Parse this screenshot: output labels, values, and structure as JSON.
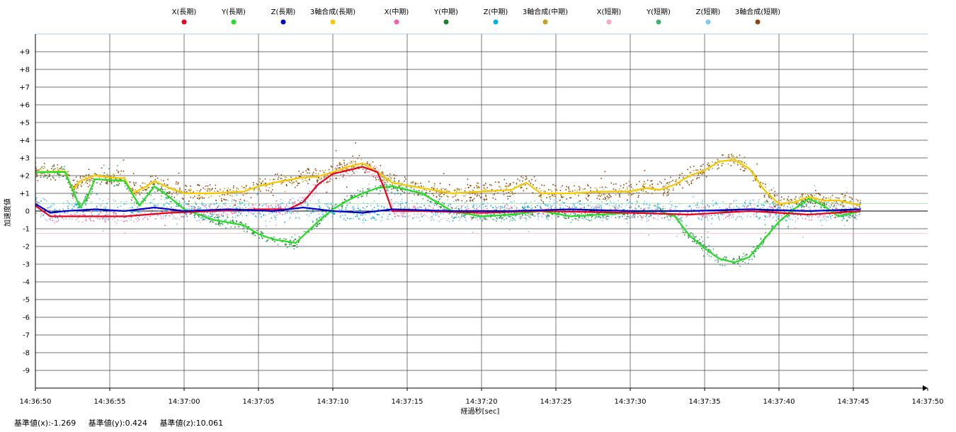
{
  "chart_data": {
    "type": "scatter",
    "xlabel": "経過秒[sec]",
    "ylabel": "加速度値",
    "ylim": [
      -10,
      10
    ],
    "y_ticks": [
      "+9",
      "+8",
      "+7",
      "+6",
      "+5",
      "+4",
      "+3",
      "+2",
      "+1",
      "0",
      "-1",
      "-2",
      "-3",
      "-4",
      "-5",
      "-6",
      "-7",
      "-8",
      "-9"
    ],
    "x_ticks": [
      "14:36:50",
      "14:36:55",
      "14:37:00",
      "14:37:05",
      "14:37:10",
      "14:37:15",
      "14:37:20",
      "14:37:25",
      "14:37:30",
      "14:37:35",
      "14:37:40",
      "14:37:45",
      "14:37:50"
    ],
    "x_range_sec": [
      0,
      60
    ],
    "grid": true,
    "legend_position": "top",
    "legend": [
      {
        "name": "X(長期)",
        "color": "#e8001c"
      },
      {
        "name": "Y(長期)",
        "color": "#22dd22"
      },
      {
        "name": "Z(長期)",
        "color": "#0000cc"
      },
      {
        "name": "3軸合成(長期)",
        "color": "#f5c800"
      },
      {
        "name": "X(中期)",
        "color": "#f060a8"
      },
      {
        "name": "Y(中期)",
        "color": "#1f7f2f"
      },
      {
        "name": "Z(中期)",
        "color": "#00aeef"
      },
      {
        "name": "3軸合成(中期)",
        "color": "#c8a020"
      },
      {
        "name": "X(短期)",
        "color": "#f8a8c0"
      },
      {
        "name": "Y(短期)",
        "color": "#3cb371"
      },
      {
        "name": "Z(短期)",
        "color": "#7ec8e8"
      },
      {
        "name": "3軸合成(短期)",
        "color": "#8b4513"
      }
    ],
    "series_points": {
      "comp_long": [
        [
          0,
          2.2
        ],
        [
          2,
          2.25
        ],
        [
          2.5,
          1.2
        ],
        [
          3,
          1.7
        ],
        [
          4,
          2.0
        ],
        [
          5,
          1.9
        ],
        [
          6,
          1.85
        ],
        [
          6.5,
          1.0
        ],
        [
          7.5,
          1.4
        ],
        [
          8,
          1.7
        ],
        [
          9,
          1.3
        ],
        [
          10,
          1.0
        ],
        [
          12,
          1.0
        ],
        [
          14,
          1.1
        ],
        [
          15,
          1.4
        ],
        [
          16,
          1.6
        ],
        [
          18,
          1.9
        ],
        [
          19,
          1.95
        ],
        [
          20,
          2.2
        ],
        [
          21,
          2.5
        ],
        [
          22,
          2.7
        ],
        [
          23,
          2.2
        ],
        [
          24,
          1.6
        ],
        [
          26,
          1.3
        ],
        [
          28,
          1.0
        ],
        [
          30,
          1.1
        ],
        [
          32,
          1.2
        ],
        [
          33,
          1.6
        ],
        [
          34,
          1.0
        ],
        [
          36,
          1.0
        ],
        [
          38,
          1.1
        ],
        [
          40,
          1.1
        ],
        [
          41,
          1.3
        ],
        [
          42,
          1.2
        ],
        [
          43,
          1.5
        ],
        [
          44,
          2.0
        ],
        [
          45,
          2.3
        ],
        [
          46,
          2.8
        ],
        [
          47,
          2.9
        ],
        [
          48,
          2.4
        ],
        [
          49,
          1.2
        ],
        [
          50,
          0.4
        ],
        [
          51,
          0.5
        ],
        [
          52,
          0.8
        ],
        [
          53,
          0.6
        ],
        [
          54,
          0.6
        ],
        [
          55,
          0.4
        ],
        [
          55.5,
          0.35
        ]
      ],
      "y_long": [
        [
          0,
          2.2
        ],
        [
          2,
          2.2
        ],
        [
          3,
          0.2
        ],
        [
          3.5,
          0.8
        ],
        [
          4,
          1.8
        ],
        [
          6,
          1.7
        ],
        [
          7,
          0.3
        ],
        [
          8,
          1.4
        ],
        [
          9,
          0.8
        ],
        [
          10,
          0.1
        ],
        [
          12,
          -0.5
        ],
        [
          14,
          -0.8
        ],
        [
          15,
          -1.3
        ],
        [
          16,
          -1.6
        ],
        [
          17.5,
          -1.8
        ],
        [
          18,
          -1.4
        ],
        [
          19,
          -0.6
        ],
        [
          20,
          0.1
        ],
        [
          21,
          0.6
        ],
        [
          22,
          1.0
        ],
        [
          23,
          1.3
        ],
        [
          24,
          1.4
        ],
        [
          26,
          1.0
        ],
        [
          28,
          0.0
        ],
        [
          30,
          -0.3
        ],
        [
          32,
          -0.2
        ],
        [
          34,
          0.0
        ],
        [
          36,
          -0.3
        ],
        [
          38,
          -0.2
        ],
        [
          40,
          -0.1
        ],
        [
          42,
          0.0
        ],
        [
          43,
          -0.3
        ],
        [
          44,
          -1.4
        ],
        [
          45,
          -2.1
        ],
        [
          46,
          -2.7
        ],
        [
          47,
          -2.9
        ],
        [
          48,
          -2.6
        ],
        [
          49,
          -1.6
        ],
        [
          50,
          -0.6
        ],
        [
          51,
          0.1
        ],
        [
          52,
          0.7
        ],
        [
          53,
          0.3
        ],
        [
          54,
          -0.3
        ],
        [
          55,
          -0.1
        ],
        [
          55.5,
          0.0
        ]
      ],
      "x_long": [
        [
          0,
          0.3
        ],
        [
          1,
          -0.3
        ],
        [
          3,
          -0.3
        ],
        [
          6,
          -0.3
        ],
        [
          9,
          -0.1
        ],
        [
          12,
          0.0
        ],
        [
          15,
          0.1
        ],
        [
          17,
          0.1
        ],
        [
          18,
          0.5
        ],
        [
          19,
          1.5
        ],
        [
          20,
          2.1
        ],
        [
          21,
          2.3
        ],
        [
          22,
          2.5
        ],
        [
          23,
          2.2
        ],
        [
          23.5,
          1.2
        ],
        [
          24,
          0.0
        ],
        [
          26,
          0.0
        ],
        [
          30,
          -0.1
        ],
        [
          34,
          0.0
        ],
        [
          40,
          -0.1
        ],
        [
          44,
          -0.2
        ],
        [
          48,
          0.0
        ],
        [
          52,
          -0.2
        ],
        [
          55.5,
          0.0
        ]
      ],
      "z_long": [
        [
          0,
          0.4
        ],
        [
          1,
          -0.1
        ],
        [
          2,
          0.0
        ],
        [
          4,
          0.1
        ],
        [
          6,
          0.0
        ],
        [
          8,
          0.2
        ],
        [
          10,
          0.0
        ],
        [
          13,
          0.1
        ],
        [
          16,
          0.0
        ],
        [
          18,
          0.2
        ],
        [
          20,
          0.0
        ],
        [
          22,
          -0.1
        ],
        [
          24,
          0.1
        ],
        [
          28,
          0.0
        ],
        [
          32,
          0.0
        ],
        [
          36,
          0.1
        ],
        [
          40,
          0.0
        ],
        [
          44,
          0.0
        ],
        [
          48,
          0.1
        ],
        [
          52,
          0.0
        ],
        [
          55.5,
          0.1
        ]
      ]
    }
  },
  "footer": {
    "base_x": "基準値(x):-1.269",
    "base_y": "基準値(y):0.424",
    "base_z": "基準値(z):10.061"
  }
}
